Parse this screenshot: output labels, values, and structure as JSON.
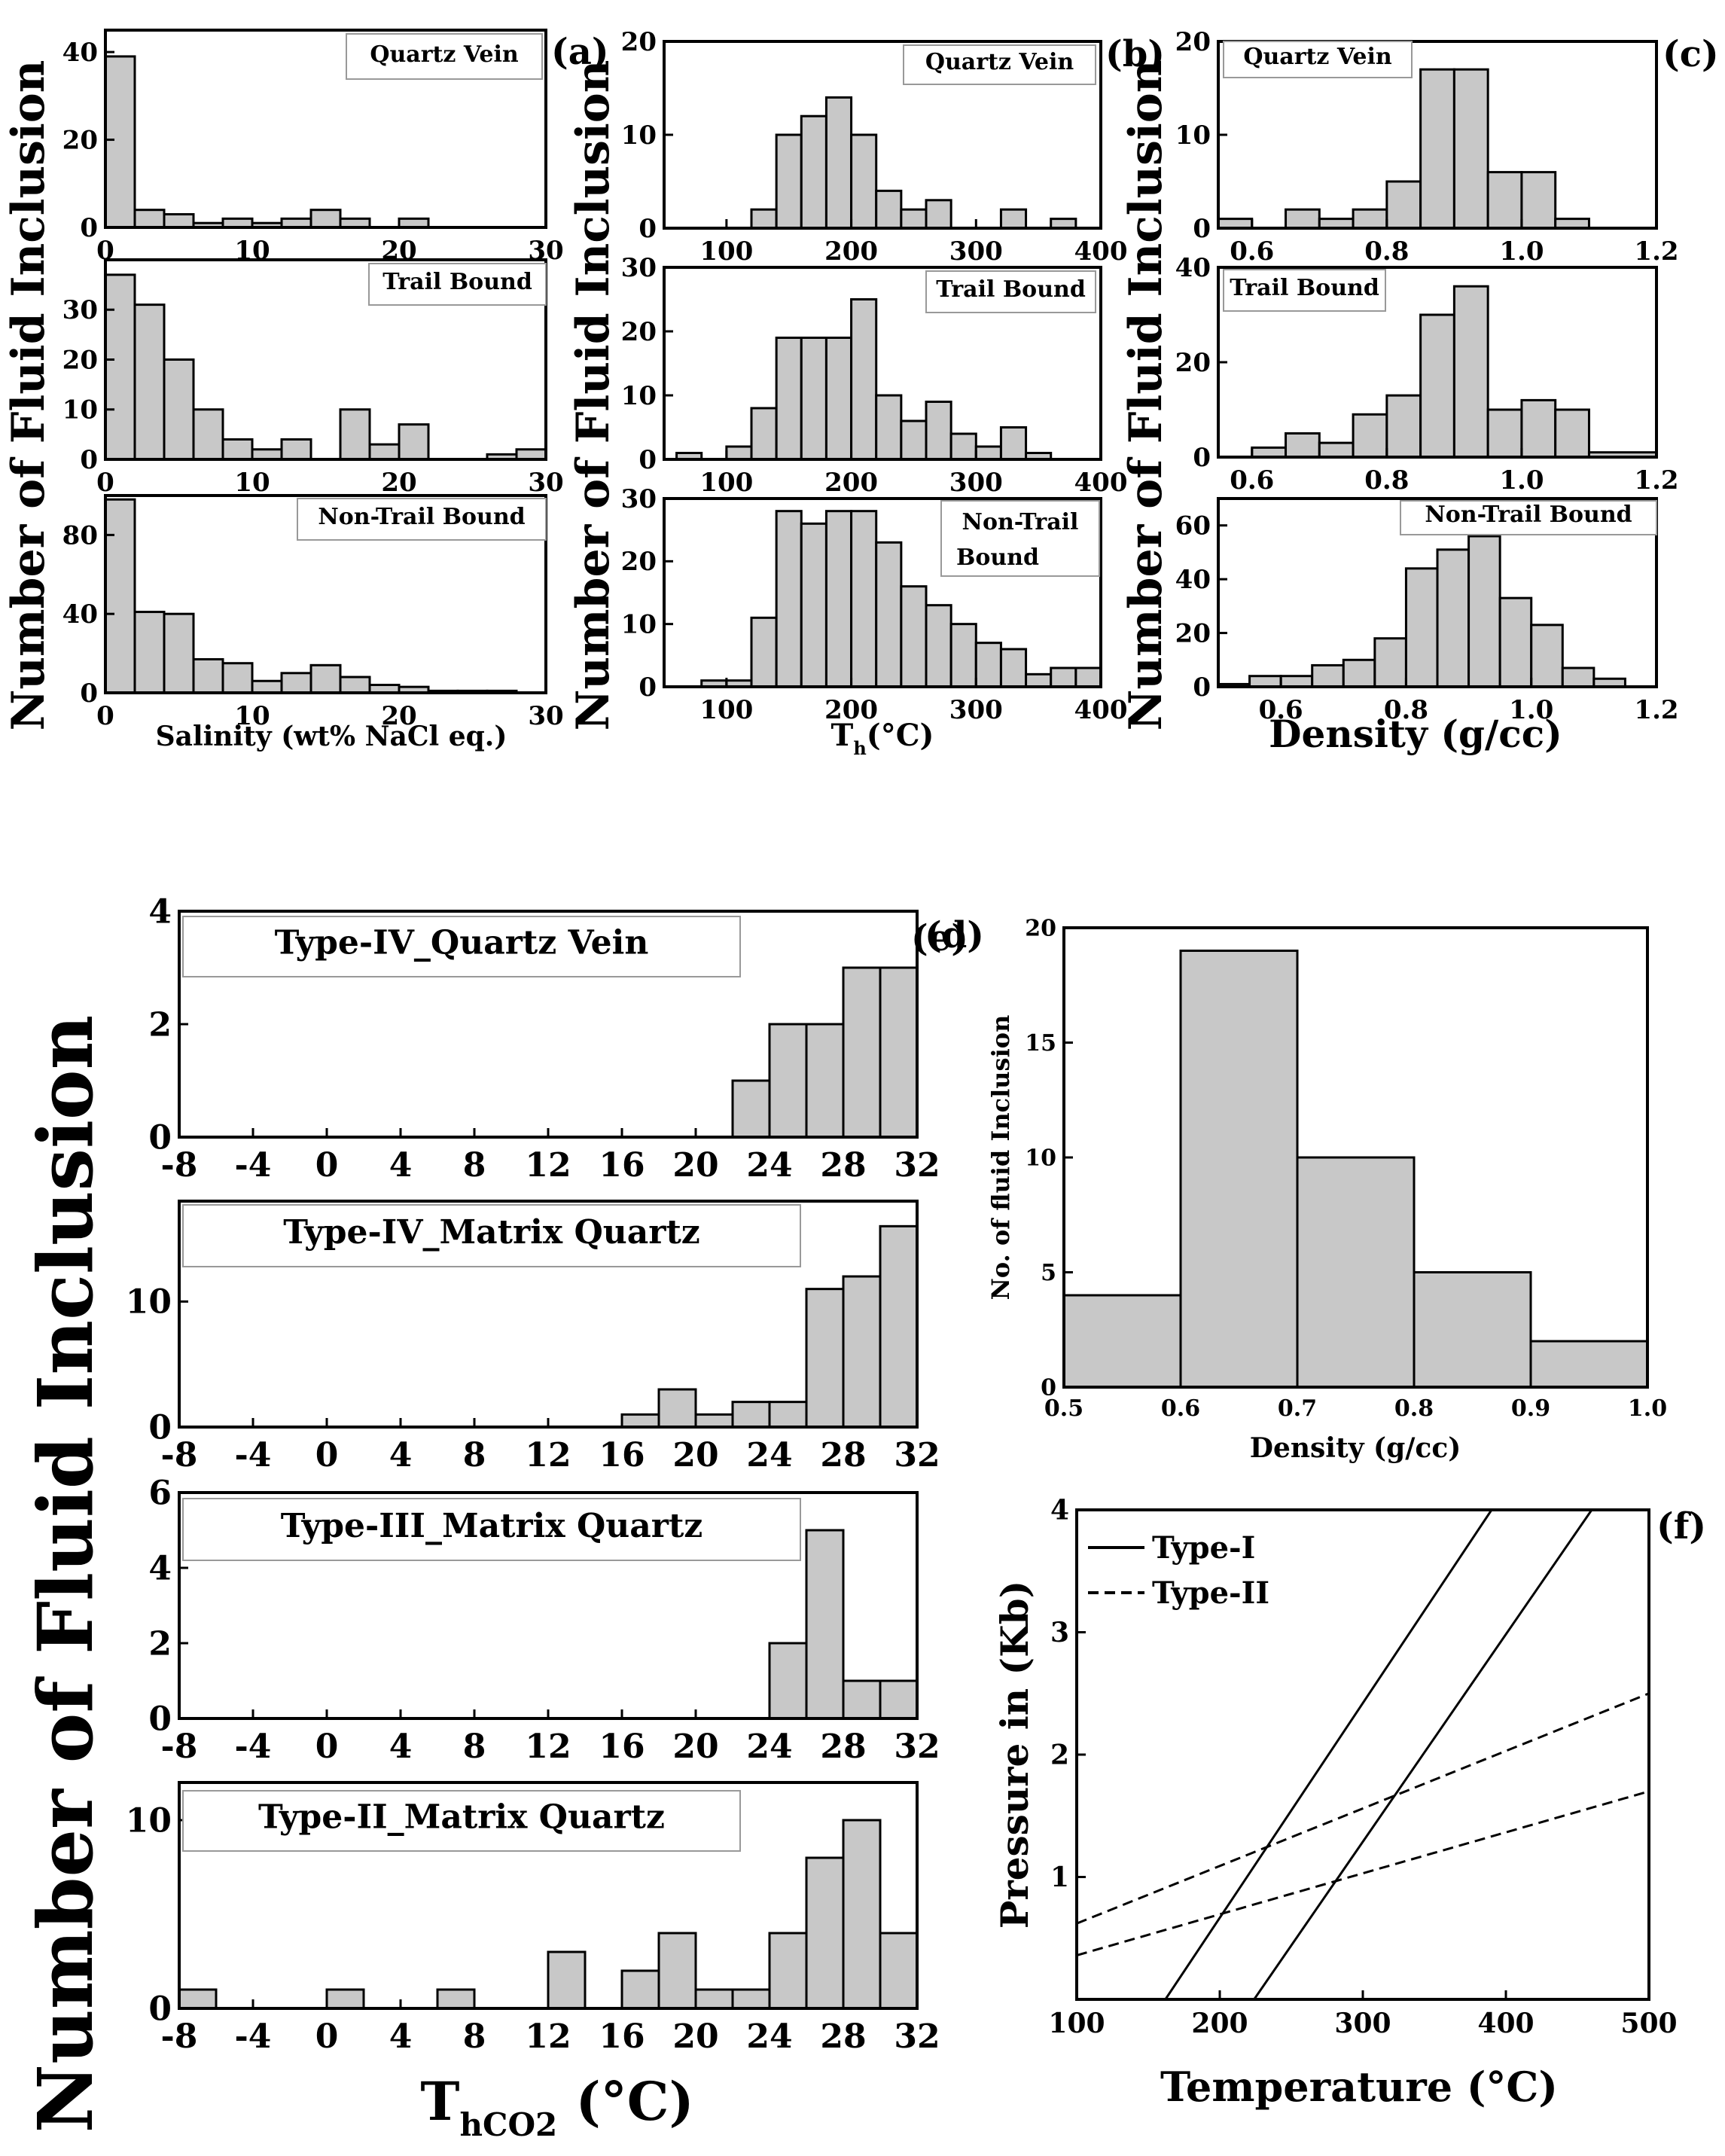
{
  "figure": {
    "top_row_ylabel": "Number of Fluid Inclusion",
    "bottom_ylabel": "Number of Fluid Inclusion"
  },
  "chart_data": [
    {
      "id": "a1",
      "type": "bar",
      "panel_label": "(a)",
      "title": "Quartz Vein",
      "xlim": [
        0,
        30
      ],
      "ylim": [
        0,
        45
      ],
      "xticks": [
        0,
        10,
        20,
        30
      ],
      "yticks": [
        0,
        20,
        40
      ],
      "bins": [
        [
          0,
          2,
          39
        ],
        [
          2,
          4,
          4
        ],
        [
          4,
          6,
          3
        ],
        [
          6,
          8,
          1
        ],
        [
          8,
          10,
          2
        ],
        [
          10,
          12,
          1
        ],
        [
          12,
          14,
          2
        ],
        [
          14,
          16,
          4
        ],
        [
          16,
          18,
          2
        ],
        [
          20,
          22,
          2
        ]
      ],
      "xlabel": ""
    },
    {
      "id": "a2",
      "type": "bar",
      "title": "Trail Bound",
      "xlim": [
        0,
        30
      ],
      "ylim": [
        0,
        40
      ],
      "xticks": [
        0,
        10,
        20,
        30
      ],
      "yticks": [
        0,
        10,
        20,
        30
      ],
      "bins": [
        [
          0,
          2,
          37
        ],
        [
          2,
          4,
          31
        ],
        [
          4,
          6,
          20
        ],
        [
          6,
          8,
          10
        ],
        [
          8,
          10,
          4
        ],
        [
          10,
          12,
          2
        ],
        [
          12,
          14,
          4
        ],
        [
          16,
          18,
          10
        ],
        [
          18,
          20,
          3
        ],
        [
          20,
          22,
          7
        ],
        [
          26,
          28,
          1
        ],
        [
          28,
          30,
          2
        ]
      ],
      "xlabel": ""
    },
    {
      "id": "a3",
      "type": "bar",
      "title": "Non-Trail Bound",
      "xlim": [
        0,
        30
      ],
      "ylim": [
        0,
        100
      ],
      "xticks": [
        0,
        10,
        20,
        30
      ],
      "yticks": [
        0,
        40,
        80
      ],
      "bins": [
        [
          0,
          2,
          98
        ],
        [
          2,
          4,
          41
        ],
        [
          4,
          6,
          40
        ],
        [
          6,
          8,
          17
        ],
        [
          8,
          10,
          15
        ],
        [
          10,
          12,
          6
        ],
        [
          12,
          14,
          10
        ],
        [
          14,
          16,
          14
        ],
        [
          16,
          18,
          8
        ],
        [
          18,
          20,
          4
        ],
        [
          20,
          22,
          3
        ],
        [
          22,
          24,
          1
        ],
        [
          24,
          26,
          1
        ],
        [
          26,
          28,
          1
        ]
      ],
      "xlabel": "Salinity (wt% NaCl eq.)"
    },
    {
      "id": "b1",
      "type": "bar",
      "panel_label": "(b)",
      "title": "Quartz Vein",
      "xlim": [
        50,
        400
      ],
      "ylim": [
        0,
        20
      ],
      "xticks": [
        100,
        200,
        300,
        400
      ],
      "yticks": [
        0,
        10,
        20
      ],
      "bins": [
        [
          120,
          140,
          2
        ],
        [
          140,
          160,
          10
        ],
        [
          160,
          180,
          12
        ],
        [
          180,
          200,
          14
        ],
        [
          200,
          220,
          10
        ],
        [
          220,
          240,
          4
        ],
        [
          240,
          260,
          2
        ],
        [
          260,
          280,
          3
        ],
        [
          320,
          340,
          2
        ],
        [
          360,
          380,
          1
        ]
      ],
      "xlabel": ""
    },
    {
      "id": "b2",
      "type": "bar",
      "title": "Trail Bound",
      "xlim": [
        50,
        400
      ],
      "ylim": [
        0,
        30
      ],
      "xticks": [
        100,
        200,
        300,
        400
      ],
      "yticks": [
        0,
        10,
        20,
        30
      ],
      "bins": [
        [
          60,
          80,
          1
        ],
        [
          100,
          120,
          2
        ],
        [
          120,
          140,
          8
        ],
        [
          140,
          160,
          19
        ],
        [
          160,
          180,
          19
        ],
        [
          180,
          200,
          19
        ],
        [
          200,
          220,
          25
        ],
        [
          220,
          240,
          10
        ],
        [
          240,
          260,
          6
        ],
        [
          260,
          280,
          9
        ],
        [
          280,
          300,
          4
        ],
        [
          300,
          320,
          2
        ],
        [
          320,
          340,
          5
        ],
        [
          340,
          360,
          1
        ]
      ],
      "xlabel": ""
    },
    {
      "id": "b3",
      "type": "bar",
      "title": "Non-Trail Bound",
      "xlim": [
        50,
        400
      ],
      "ylim": [
        0,
        30
      ],
      "xticks": [
        100,
        200,
        300,
        400
      ],
      "yticks": [
        0,
        10,
        20,
        30
      ],
      "bins": [
        [
          80,
          100,
          1
        ],
        [
          100,
          120,
          1
        ],
        [
          120,
          140,
          11
        ],
        [
          140,
          160,
          28
        ],
        [
          160,
          180,
          26
        ],
        [
          180,
          200,
          28
        ],
        [
          200,
          220,
          28
        ],
        [
          220,
          240,
          23
        ],
        [
          240,
          260,
          16
        ],
        [
          260,
          280,
          13
        ],
        [
          280,
          300,
          10
        ],
        [
          300,
          320,
          7
        ],
        [
          320,
          340,
          6
        ],
        [
          340,
          360,
          2
        ],
        [
          360,
          380,
          3
        ],
        [
          380,
          400,
          3
        ]
      ],
      "xlabel": "Th(°C)",
      "xlabel_main": "T",
      "xlabel_sub": "h",
      "xlabel_rest": "(°C)"
    },
    {
      "id": "c1",
      "type": "bar",
      "panel_label": "(c)",
      "title": "Quartz Vein",
      "xlim": [
        0.55,
        1.2
      ],
      "ylim": [
        0,
        20
      ],
      "xticks": [
        0.6,
        0.8,
        1.0,
        1.2
      ],
      "yticks": [
        0,
        10,
        20
      ],
      "bins": [
        [
          0.55,
          0.6,
          1
        ],
        [
          0.65,
          0.7,
          2
        ],
        [
          0.7,
          0.75,
          1
        ],
        [
          0.75,
          0.8,
          2
        ],
        [
          0.8,
          0.85,
          5
        ],
        [
          0.85,
          0.9,
          17
        ],
        [
          0.9,
          0.95,
          17
        ],
        [
          0.95,
          1.0,
          6
        ],
        [
          1.0,
          1.05,
          6
        ],
        [
          1.05,
          1.1,
          1
        ]
      ],
      "xlabel": ""
    },
    {
      "id": "c2",
      "type": "bar",
      "title": "Trail Bound",
      "xlim": [
        0.55,
        1.2
      ],
      "ylim": [
        0,
        40
      ],
      "xticks": [
        0.6,
        0.8,
        1.0,
        1.2
      ],
      "yticks": [
        0,
        20,
        40
      ],
      "bins": [
        [
          0.6,
          0.65,
          2
        ],
        [
          0.65,
          0.7,
          5
        ],
        [
          0.7,
          0.75,
          3
        ],
        [
          0.75,
          0.8,
          9
        ],
        [
          0.8,
          0.85,
          13
        ],
        [
          0.85,
          0.9,
          30
        ],
        [
          0.9,
          0.95,
          36
        ],
        [
          0.95,
          1.0,
          10
        ],
        [
          1.0,
          1.05,
          12
        ],
        [
          1.05,
          1.1,
          10
        ],
        [
          1.1,
          1.2,
          1
        ]
      ],
      "xlabel": ""
    },
    {
      "id": "c3",
      "type": "bar",
      "title": "Non-Trail Bound",
      "xlim": [
        0.5,
        1.2
      ],
      "ylim": [
        0,
        70
      ],
      "xticks": [
        0.6,
        0.8,
        1.0,
        1.2
      ],
      "yticks": [
        0,
        20,
        40,
        60
      ],
      "bins": [
        [
          0.5,
          0.55,
          1
        ],
        [
          0.55,
          0.6,
          4
        ],
        [
          0.6,
          0.65,
          4
        ],
        [
          0.65,
          0.7,
          8
        ],
        [
          0.7,
          0.75,
          10
        ],
        [
          0.75,
          0.8,
          18
        ],
        [
          0.8,
          0.85,
          44
        ],
        [
          0.85,
          0.9,
          51
        ],
        [
          0.9,
          0.95,
          56
        ],
        [
          0.95,
          1.0,
          33
        ],
        [
          1.0,
          1.05,
          23
        ],
        [
          1.05,
          1.1,
          7
        ],
        [
          1.1,
          1.15,
          3
        ]
      ],
      "xlabel": "Density (g/cc)"
    },
    {
      "id": "d1",
      "type": "bar",
      "panel_label": "(d)",
      "title": "Type-IV_Quartz Vein",
      "xlim": [
        -8,
        32
      ],
      "ylim": [
        0,
        4
      ],
      "xticks": [
        -8,
        -4,
        0,
        4,
        8,
        12,
        16,
        20,
        24,
        28,
        32
      ],
      "yticks": [
        0,
        2,
        4
      ],
      "bins": [
        [
          22,
          24,
          1
        ],
        [
          24,
          26,
          2
        ],
        [
          26,
          28,
          2
        ],
        [
          28,
          30,
          3
        ],
        [
          30,
          32,
          3
        ]
      ],
      "xlabel": ""
    },
    {
      "id": "d2",
      "type": "bar",
      "title": "Type-IV_Matrix Quartz",
      "xlim": [
        -8,
        32
      ],
      "ylim": [
        0,
        18
      ],
      "xticks": [
        -8,
        -4,
        0,
        4,
        8,
        12,
        16,
        20,
        24,
        28,
        32
      ],
      "yticks": [
        0,
        10
      ],
      "bins": [
        [
          16,
          18,
          1
        ],
        [
          18,
          20,
          3
        ],
        [
          20,
          22,
          1
        ],
        [
          22,
          24,
          2
        ],
        [
          24,
          26,
          2
        ],
        [
          26,
          28,
          11
        ],
        [
          28,
          30,
          12
        ],
        [
          30,
          32,
          16
        ]
      ],
      "xlabel": ""
    },
    {
      "id": "d3",
      "type": "bar",
      "title": "Type-III_Matrix Quartz",
      "xlim": [
        -8,
        32
      ],
      "ylim": [
        0,
        6
      ],
      "xticks": [
        -8,
        -4,
        0,
        4,
        8,
        12,
        16,
        20,
        24,
        28,
        32
      ],
      "yticks": [
        0,
        2,
        4,
        6
      ],
      "bins": [
        [
          24,
          26,
          2
        ],
        [
          26,
          28,
          5
        ],
        [
          28,
          30,
          1
        ],
        [
          30,
          32,
          1
        ]
      ],
      "xlabel": ""
    },
    {
      "id": "d4",
      "type": "bar",
      "title": "Type-II_Matrix Quartz",
      "xlim": [
        -8,
        32
      ],
      "ylim": [
        0,
        12
      ],
      "xticks": [
        -8,
        -4,
        0,
        4,
        8,
        12,
        16,
        20,
        24,
        28,
        32
      ],
      "yticks": [
        0,
        10
      ],
      "bins": [
        [
          -8,
          -6,
          1
        ],
        [
          0,
          2,
          1
        ],
        [
          6,
          8,
          1
        ],
        [
          12,
          14,
          3
        ],
        [
          16,
          18,
          2
        ],
        [
          18,
          20,
          4
        ],
        [
          20,
          22,
          1
        ],
        [
          22,
          24,
          1
        ],
        [
          24,
          26,
          4
        ],
        [
          26,
          28,
          8
        ],
        [
          28,
          30,
          10
        ],
        [
          30,
          32,
          4
        ]
      ],
      "xlabel": "ThCO2 (°C)",
      "xlabel_main": "T",
      "xlabel_sub": "hCO2",
      "xlabel_rest": " (°C)"
    },
    {
      "id": "e",
      "type": "bar",
      "panel_label": "(e)",
      "title": "",
      "xlim": [
        0.5,
        1.0
      ],
      "ylim": [
        0,
        20
      ],
      "xticks": [
        0.5,
        0.6,
        0.7,
        0.8,
        0.9,
        1.0
      ],
      "yticks": [
        0,
        5,
        10,
        15,
        20
      ],
      "bins": [
        [
          0.5,
          0.6,
          4
        ],
        [
          0.6,
          0.7,
          19
        ],
        [
          0.7,
          0.8,
          10
        ],
        [
          0.8,
          0.9,
          5
        ],
        [
          0.9,
          1.0,
          2
        ]
      ],
      "xlabel": "Density (g/cc)",
      "ylabel": "No. of fluid Inclusion"
    },
    {
      "id": "f",
      "type": "line",
      "panel_label": "(f)",
      "xlim": [
        100,
        500
      ],
      "ylim": [
        0,
        4
      ],
      "xticks": [
        100,
        200,
        300,
        400,
        500
      ],
      "yticks": [
        1,
        2,
        3,
        4
      ],
      "xlabel": "Temperature (°C)",
      "ylabel": "Pressure in (Kb)",
      "legend": [
        {
          "label": "Type-I",
          "style": "solid"
        },
        {
          "label": "Type-II",
          "style": "dashed"
        }
      ],
      "series": [
        {
          "name": "Type-I",
          "style": "solid",
          "x": [
            162,
            390
          ],
          "y": [
            0,
            4
          ]
        },
        {
          "name": "Type-I",
          "style": "solid",
          "x": [
            224,
            460
          ],
          "y": [
            0,
            4
          ]
        },
        {
          "name": "Type-II",
          "style": "dashed",
          "x": [
            100,
            500
          ],
          "y": [
            0.62,
            2.5
          ]
        },
        {
          "name": "Type-II",
          "style": "dashed",
          "x": [
            100,
            500
          ],
          "y": [
            0.36,
            1.7
          ]
        }
      ]
    }
  ]
}
